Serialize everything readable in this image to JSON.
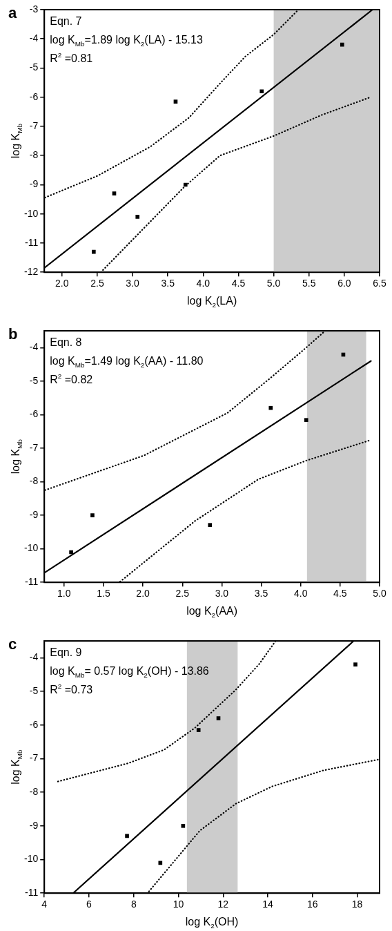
{
  "chart_data": [
    {
      "type": "scatter",
      "title": "a",
      "xlabel": "log K$_{2}$(LA)",
      "ylabel": "log K$_{Mb}$",
      "annotations": [
        "Eqn. 7",
        "log K$_{Mb}$=1.89 log K$_{2}$(LA) - 15.13",
        "R$^{2}$ =0.81"
      ],
      "xlim": [
        1.75,
        6.5
      ],
      "ylim": [
        -12,
        -3
      ],
      "xticks": [
        {
          "value": 2,
          "label": "2.0"
        },
        2.5,
        {
          "value": 3,
          "label": "3.0"
        },
        3.5,
        {
          "value": 4,
          "label": "4.0"
        },
        4.5,
        {
          "value": 5,
          "label": "5.0"
        },
        5.5,
        {
          "value": 6,
          "label": "6.0"
        },
        6.5
      ],
      "yticks": [
        -12,
        -11,
        -10,
        -9,
        -8,
        -7,
        -6,
        -5,
        -4,
        -3
      ],
      "grid": false,
      "legend": false,
      "bands": [
        {
          "axis": "x",
          "from": 5.0,
          "to": 6.5,
          "color": "#cccccc"
        }
      ],
      "series": [
        {
          "color": "#000000",
          "marker": "square",
          "x": [
            2.45,
            2.74,
            3.07,
            3.61,
            3.75,
            4.83,
            5.97
          ],
          "values": [
            -11.3,
            -9.3,
            -10.1,
            -6.15,
            -9.0,
            -5.8,
            -4.2
          ]
        },
        {
          "type": "line",
          "color": "#000000",
          "line_style": "solid",
          "x": [
            1.75,
            6.4
          ],
          "values": [
            -11.85,
            -3.0
          ]
        },
        {
          "type": "line",
          "color": "#000000",
          "line_style": "dotted",
          "x": [
            1.76,
            2.5,
            3.25,
            3.8,
            4.25,
            4.6,
            5.0,
            5.35
          ],
          "values": [
            -9.44,
            -8.7,
            -7.7,
            -6.7,
            -5.5,
            -4.6,
            -3.85,
            -3.0
          ]
        },
        {
          "type": "line",
          "color": "#000000",
          "line_style": "dotted",
          "x": [
            2.55,
            3.73,
            4.24,
            5.0,
            5.68,
            6.36
          ],
          "values": [
            -12.0,
            -9.08,
            -8.0,
            -7.33,
            -6.61,
            -6.01
          ]
        }
      ]
    },
    {
      "type": "scatter",
      "title": "b",
      "xlabel": "log K$_{2}$(AA)",
      "ylabel": "log K$_{Mb}$",
      "annotations": [
        "Eqn. 8",
        "log K$_{Mb}$=1.49 log K$_{2}$(AA) - 11.80",
        "R$^{2}$ =0.82"
      ],
      "xlim": [
        0.75,
        5.0
      ],
      "ylim": [
        -11,
        -3.5
      ],
      "xticks": [
        {
          "value": 1,
          "label": "1.0"
        },
        1.5,
        {
          "value": 2,
          "label": "2.0"
        },
        2.5,
        {
          "value": 3,
          "label": "3.0"
        },
        3.5,
        {
          "value": 4,
          "label": "4.0"
        },
        4.5,
        {
          "value": 5,
          "label": "5.0"
        }
      ],
      "yticks": [
        -11,
        -10,
        -9,
        -8,
        -7,
        -6,
        -5,
        -4
      ],
      "grid": false,
      "legend": false,
      "bands": [
        {
          "axis": "x",
          "from": 4.08,
          "to": 4.83,
          "color": "#cccccc"
        }
      ],
      "series": [
        {
          "color": "#000000",
          "marker": "square",
          "x": [
            1.09,
            1.36,
            2.85,
            3.62,
            4.07,
            4.54
          ],
          "values": [
            -10.1,
            -9.0,
            -9.29,
            -5.8,
            -6.16,
            -4.21
          ]
        },
        {
          "type": "line",
          "color": "#000000",
          "line_style": "solid",
          "x": [
            0.76,
            4.89
          ],
          "values": [
            -10.7,
            -4.4
          ]
        },
        {
          "type": "line",
          "color": "#000000",
          "line_style": "dotted",
          "x": [
            0.76,
            2.01,
            3.07,
            3.62,
            4.07,
            4.31
          ],
          "values": [
            -8.25,
            -7.22,
            -5.95,
            -4.9,
            -4.0,
            -3.5
          ]
        },
        {
          "type": "line",
          "color": "#000000",
          "line_style": "dotted",
          "x": [
            1.71,
            2.66,
            3.46,
            4.07,
            4.87
          ],
          "values": [
            -10.98,
            -9.17,
            -7.93,
            -7.37,
            -6.77
          ]
        }
      ]
    },
    {
      "type": "scatter",
      "title": "c",
      "xlabel": "log K$_{2}$(OH)",
      "ylabel": "log K$_{Mb}$",
      "annotations": [
        "Eqn. 9",
        "log K$_{Mb}$= 0.57 log K$_{2}$(OH) - 13.86",
        "R$^{2}$ =0.73"
      ],
      "xlim": [
        4,
        19
      ],
      "ylim": [
        -11,
        -3.5
      ],
      "xticks": [
        4,
        6,
        8,
        10,
        12,
        14,
        16,
        18
      ],
      "yticks": [
        -11,
        -10,
        -9,
        -8,
        -7,
        -6,
        -5,
        -4
      ],
      "grid": false,
      "legend": false,
      "bands": [
        {
          "axis": "x",
          "from": 10.38,
          "to": 12.65,
          "color": "#cccccc"
        }
      ],
      "series": [
        {
          "color": "#000000",
          "marker": "square",
          "x": [
            7.7,
            9.19,
            10.21,
            10.9,
            11.79,
            17.92
          ],
          "values": [
            -9.3,
            -10.1,
            -9.0,
            -6.15,
            -5.8,
            -4.2
          ]
        },
        {
          "type": "line",
          "color": "#000000",
          "line_style": "solid",
          "x": [
            5.29,
            17.84
          ],
          "values": [
            -11.0,
            -3.5
          ]
        },
        {
          "type": "line",
          "color": "#000000",
          "line_style": "dotted",
          "x": [
            4.61,
            7.74,
            9.35,
            10.73,
            12.57,
            13.61,
            14.35
          ],
          "values": [
            -7.68,
            -7.14,
            -6.74,
            -6.09,
            -4.95,
            -4.19,
            -3.5
          ]
        },
        {
          "type": "line",
          "color": "#000000",
          "line_style": "dotted",
          "x": [
            8.68,
            10.96,
            12.57,
            14.18,
            16.48,
            19.0
          ],
          "values": [
            -10.95,
            -9.14,
            -8.34,
            -7.83,
            -7.35,
            -7.02
          ]
        }
      ]
    }
  ]
}
